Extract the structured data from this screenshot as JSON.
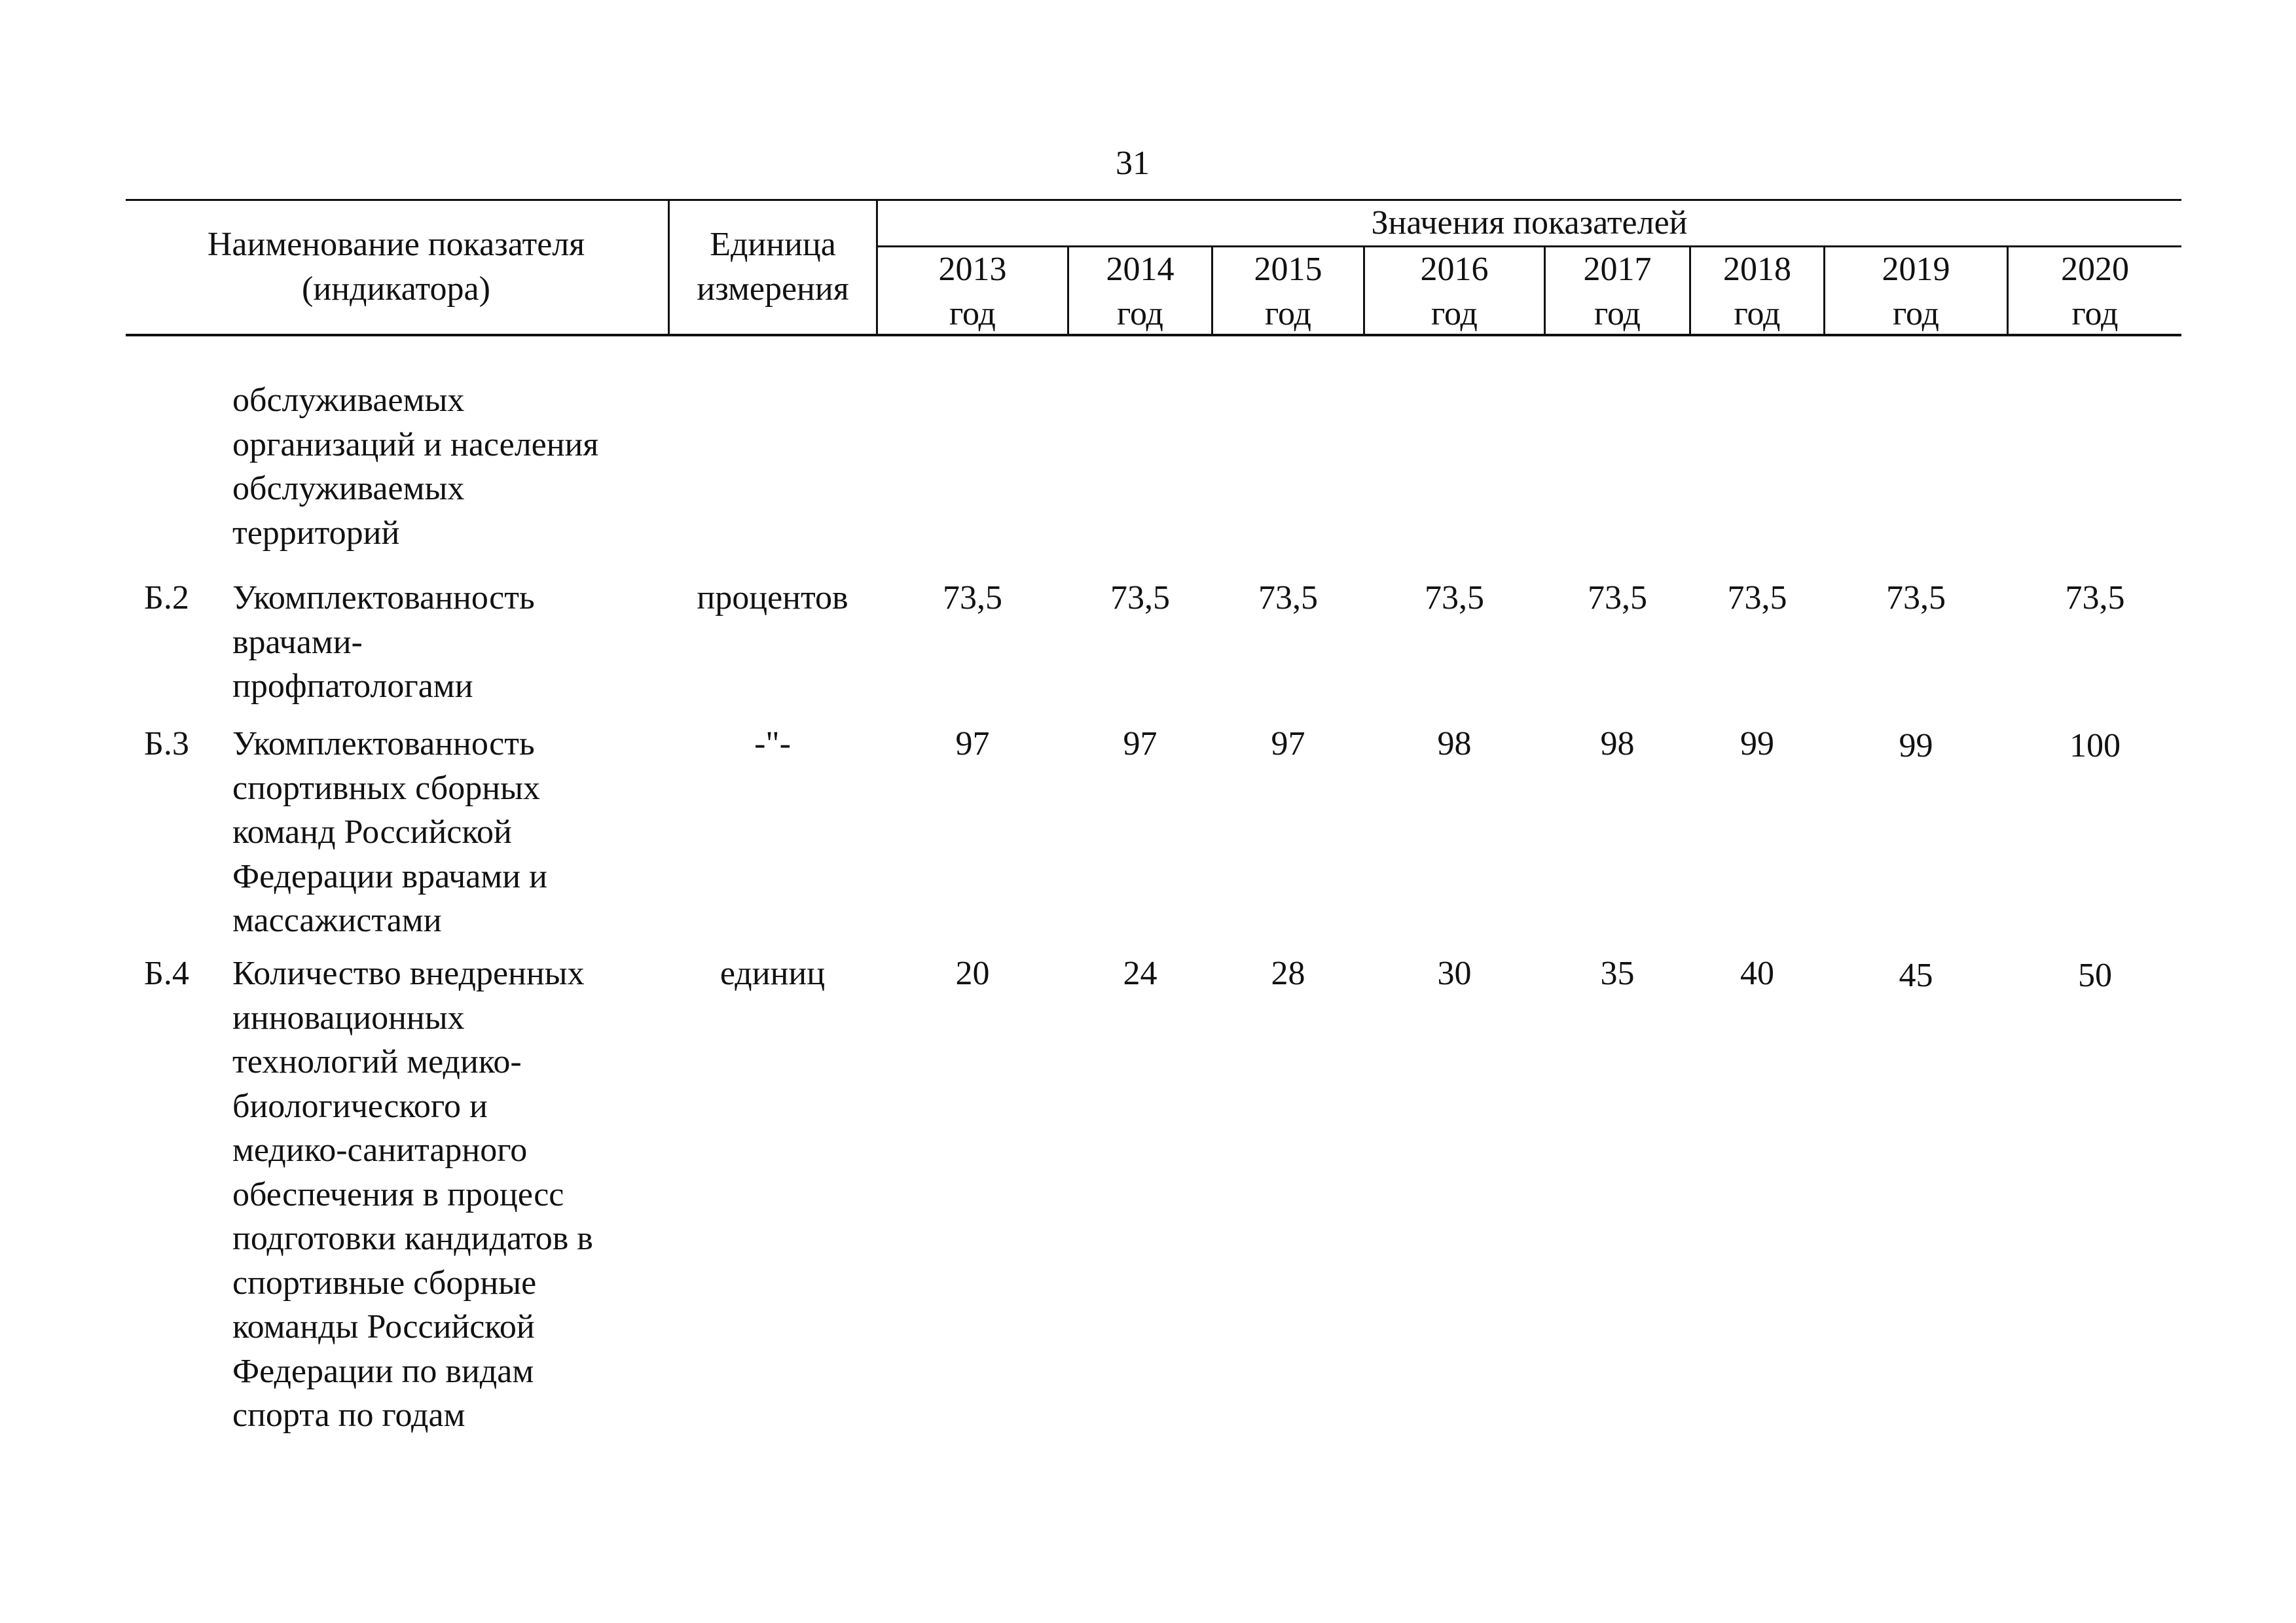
{
  "page": {
    "number": "31"
  },
  "table": {
    "header": {
      "name_col": "Наименование показателя\n(индикатора)",
      "unit_col": "Единица\nизмерения",
      "values_group": "Значения показателей",
      "years": [
        "2013\nгод",
        "2014\nгод",
        "2015\nгод",
        "2016\nгод",
        "2017\nгод",
        "2018\nгод",
        "2019\nгод",
        "2020\nгод"
      ]
    },
    "continuation": {
      "name": "обслуживаемых\nорганизаций и населения\nобслуживаемых\nтерриторий"
    },
    "rows": [
      {
        "code": "Б.2",
        "name": "Укомплектованность\nврачами-\nпрофпатологами",
        "unit": "процентов",
        "values": [
          "73,5",
          "73,5",
          "73,5",
          "73,5",
          "73,5",
          "73,5",
          "73,5",
          "73,5"
        ]
      },
      {
        "code": "Б.3",
        "name": "Укомплектованность\nспортивных сборных\nкоманд Российской\nФедерации врачами и\nмассажистами",
        "unit": "-\"-",
        "values": [
          "97",
          "97",
          "97",
          "98",
          "98",
          "99",
          "99",
          "100"
        ]
      },
      {
        "code": "Б.4",
        "name": "Количество внедренных\nинновационных\nтехнологий медико-\nбиологического и\nмедико-санитарного\nобеспечения в  процесс\nподготовки кандидатов в\nспортивные сборные\nкоманды Российской\nФедерации по видам\nспорта по годам",
        "unit": "единиц",
        "values": [
          "20",
          "24",
          "28",
          "30",
          "35",
          "40",
          "45",
          "50"
        ]
      }
    ]
  }
}
